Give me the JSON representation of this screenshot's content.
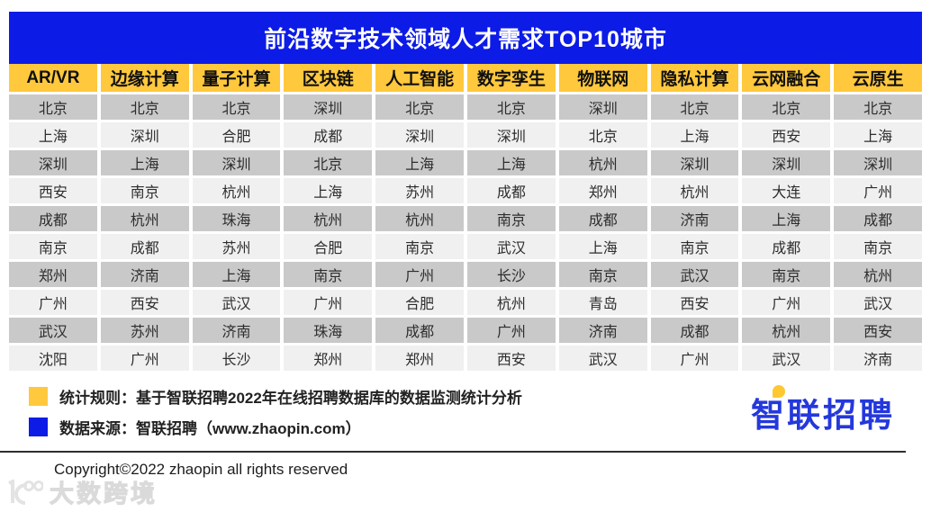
{
  "chart_data": {
    "type": "table",
    "title": "前沿数字技术领域人才需求TOP10城市",
    "columns": [
      "AR/VR",
      "边缘计算",
      "量子计算",
      "区块链",
      "人工智能",
      "数字孪生",
      "物联网",
      "隐私计算",
      "云网融合",
      "云原生"
    ],
    "rows": [
      [
        "北京",
        "北京",
        "北京",
        "深圳",
        "北京",
        "北京",
        "深圳",
        "北京",
        "北京",
        "北京"
      ],
      [
        "上海",
        "深圳",
        "合肥",
        "成都",
        "深圳",
        "深圳",
        "北京",
        "上海",
        "西安",
        "上海"
      ],
      [
        "深圳",
        "上海",
        "深圳",
        "北京",
        "上海",
        "上海",
        "杭州",
        "深圳",
        "深圳",
        "深圳"
      ],
      [
        "西安",
        "南京",
        "杭州",
        "上海",
        "苏州",
        "成都",
        "郑州",
        "杭州",
        "大连",
        "广州"
      ],
      [
        "成都",
        "杭州",
        "珠海",
        "杭州",
        "杭州",
        "南京",
        "成都",
        "济南",
        "上海",
        "成都"
      ],
      [
        "南京",
        "成都",
        "苏州",
        "合肥",
        "南京",
        "武汉",
        "上海",
        "南京",
        "成都",
        "南京"
      ],
      [
        "郑州",
        "济南",
        "上海",
        "南京",
        "广州",
        "长沙",
        "南京",
        "武汉",
        "南京",
        "杭州"
      ],
      [
        "广州",
        "西安",
        "武汉",
        "广州",
        "合肥",
        "杭州",
        "青岛",
        "西安",
        "广州",
        "武汉"
      ],
      [
        "武汉",
        "苏州",
        "济南",
        "珠海",
        "成都",
        "广州",
        "济南",
        "成都",
        "杭州",
        "西安"
      ],
      [
        "沈阳",
        "广州",
        "长沙",
        "郑州",
        "郑州",
        "西安",
        "武汉",
        "广州",
        "武汉",
        "济南"
      ]
    ],
    "layout": {
      "row_striping": "odd-gray-even-light",
      "grid": "white-gaps"
    }
  },
  "legend": {
    "items": [
      {
        "label": "统计规则：基于智联招聘2022年在线招聘数据库的数据监测统计分析",
        "swatch": "#ffc83d"
      },
      {
        "label": "数据来源：智联招聘（www.zhaopin.com）",
        "swatch": "#0d1be6"
      }
    ]
  },
  "logo": {
    "text": "智联招聘"
  },
  "footer": {
    "copyright": "Copyright©2022 zhaopin all rights reserved"
  },
  "watermark": {
    "text": "大数跨境"
  },
  "colors": {
    "title_bar": "#0d1be6",
    "header_bg": "#ffc83d",
    "row_odd": "#c9c9c9",
    "row_even": "#f0f0f0",
    "logo_blue": "#2438dc",
    "logo_accent": "#ffc831",
    "title_text": "#ffffff"
  }
}
